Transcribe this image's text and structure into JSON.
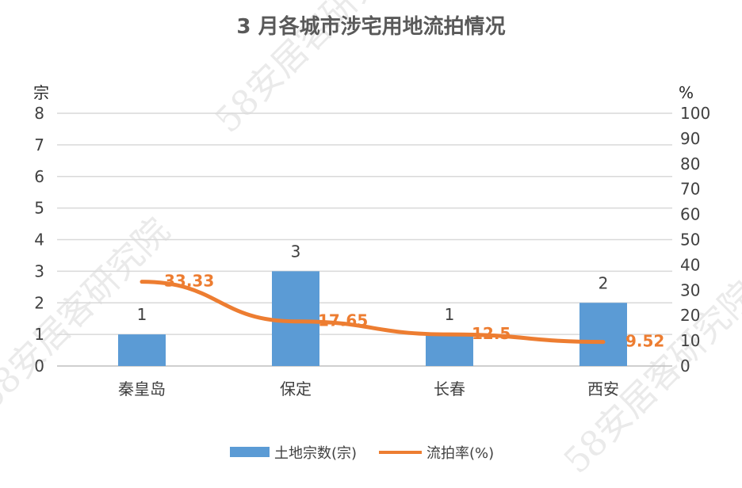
{
  "chart_data": {
    "type": "bar",
    "title": "3 月各城市涉宅用地流拍情况",
    "categories": [
      "秦皇岛",
      "保定",
      "长春",
      "西安"
    ],
    "y_left_unit": "宗",
    "y_right_unit": "%",
    "ylim_left": [
      0,
      8
    ],
    "ylim_right": [
      0,
      100
    ],
    "y_left_ticks": [
      0,
      1,
      2,
      3,
      4,
      5,
      6,
      7,
      8
    ],
    "y_right_ticks": [
      0,
      10,
      20,
      30,
      40,
      50,
      60,
      70,
      80,
      90,
      100
    ],
    "grid": true,
    "legend_position": "bottom",
    "series": [
      {
        "name": "土地宗数(宗)",
        "type": "bar",
        "axis": "left",
        "values": [
          1,
          3,
          1,
          2
        ],
        "labels": [
          "1",
          "3",
          "1",
          "2"
        ]
      },
      {
        "name": "流拍率(%)",
        "type": "line",
        "axis": "right",
        "values": [
          33.33,
          17.65,
          12.5,
          9.52
        ],
        "labels": [
          "33.33",
          "17.65",
          "12.5",
          "9.52"
        ]
      }
    ],
    "watermark_text": "58安居客研究院"
  },
  "colors": {
    "bar": "#5b9bd5",
    "line": "#ed7d31",
    "grid": "#d9d9d9",
    "axis": "#bfbfbf"
  }
}
